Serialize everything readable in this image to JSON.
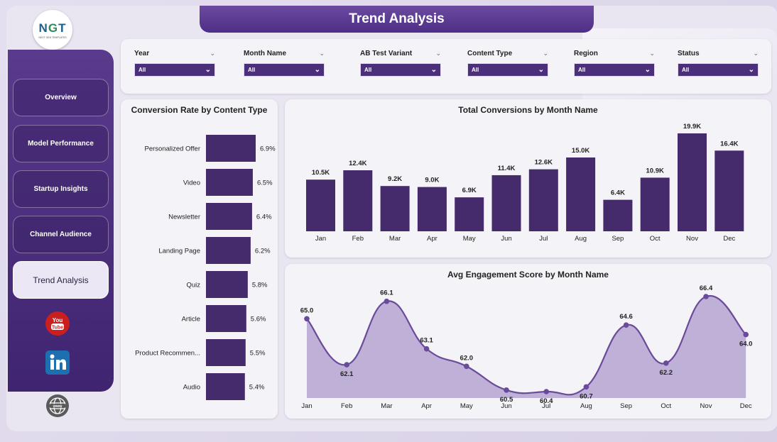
{
  "app": {
    "title": "Trend Analysis",
    "logo_text_a": "N",
    "logo_text_b": "G",
    "logo_text_c": "T",
    "logo_sub": "NEXT GEN TEMPLATES"
  },
  "colors": {
    "primary": "#4b2f7a",
    "bar": "#452b6b",
    "area_fill": "#b9a8d3",
    "line": "#6a4a9a"
  },
  "sidebar": {
    "items": [
      {
        "label": "Overview",
        "active": false
      },
      {
        "label": "Model Performance",
        "active": false
      },
      {
        "label": "Startup Insights",
        "active": false
      },
      {
        "label": "Channel Audience",
        "active": false
      },
      {
        "label": "Trend Analysis",
        "active": true
      }
    ],
    "social": [
      {
        "icon": "youtube-icon",
        "text": "You Tube"
      },
      {
        "icon": "linkedin-icon",
        "text": "in"
      },
      {
        "icon": "web-globe-icon",
        "text": "www"
      }
    ]
  },
  "filters": [
    {
      "label": "Year",
      "value": "All"
    },
    {
      "label": "Month Name",
      "value": "All"
    },
    {
      "label": "AB Test Variant",
      "value": "All"
    },
    {
      "label": "Content Type",
      "value": "All"
    },
    {
      "label": "Region",
      "value": "All"
    },
    {
      "label": "Status",
      "value": "All"
    }
  ],
  "chart_data": [
    {
      "type": "bar",
      "orientation": "horizontal",
      "title": "Conversion Rate by Content Type",
      "categories": [
        "Personalized Offer",
        "Video",
        "Newsletter",
        "Landing Page",
        "Quiz",
        "Article",
        "Product Recommen...",
        "Audio"
      ],
      "values": [
        6.9,
        6.5,
        6.4,
        6.2,
        5.8,
        5.6,
        5.5,
        5.4
      ],
      "data_labels": [
        "6.9%",
        "6.5%",
        "6.4%",
        "6.2%",
        "5.8%",
        "5.6%",
        "5.5%",
        "5.4%"
      ]
    },
    {
      "type": "bar",
      "title": "Total Conversions by Month Name",
      "categories": [
        "Jan",
        "Feb",
        "Mar",
        "Apr",
        "May",
        "Jun",
        "Jul",
        "Aug",
        "Sep",
        "Oct",
        "Nov",
        "Dec"
      ],
      "values": [
        10500,
        12400,
        9200,
        9000,
        6900,
        11400,
        12600,
        15000,
        6400,
        10900,
        19900,
        16400
      ],
      "data_labels": [
        "10.5K",
        "12.4K",
        "9.2K",
        "9.0K",
        "6.9K",
        "11.4K",
        "12.6K",
        "15.0K",
        "6.4K",
        "10.9K",
        "19.9K",
        "16.4K"
      ]
    },
    {
      "type": "area",
      "title": "Avg Engagement Score by Month Name",
      "categories": [
        "Jan",
        "Feb",
        "Mar",
        "Apr",
        "May",
        "Jun",
        "Jul",
        "Aug",
        "Sep",
        "Oct",
        "Nov",
        "Dec"
      ],
      "values": [
        65.0,
        62.1,
        66.1,
        63.1,
        62.0,
        60.5,
        60.4,
        60.7,
        64.6,
        62.2,
        66.4,
        64.0
      ],
      "data_labels": [
        "65.0",
        "62.1",
        "66.1",
        "63.1",
        "62.0",
        "60.5",
        "60.4",
        "60.7",
        "64.6",
        "62.2",
        "66.4",
        "64.0"
      ]
    }
  ]
}
